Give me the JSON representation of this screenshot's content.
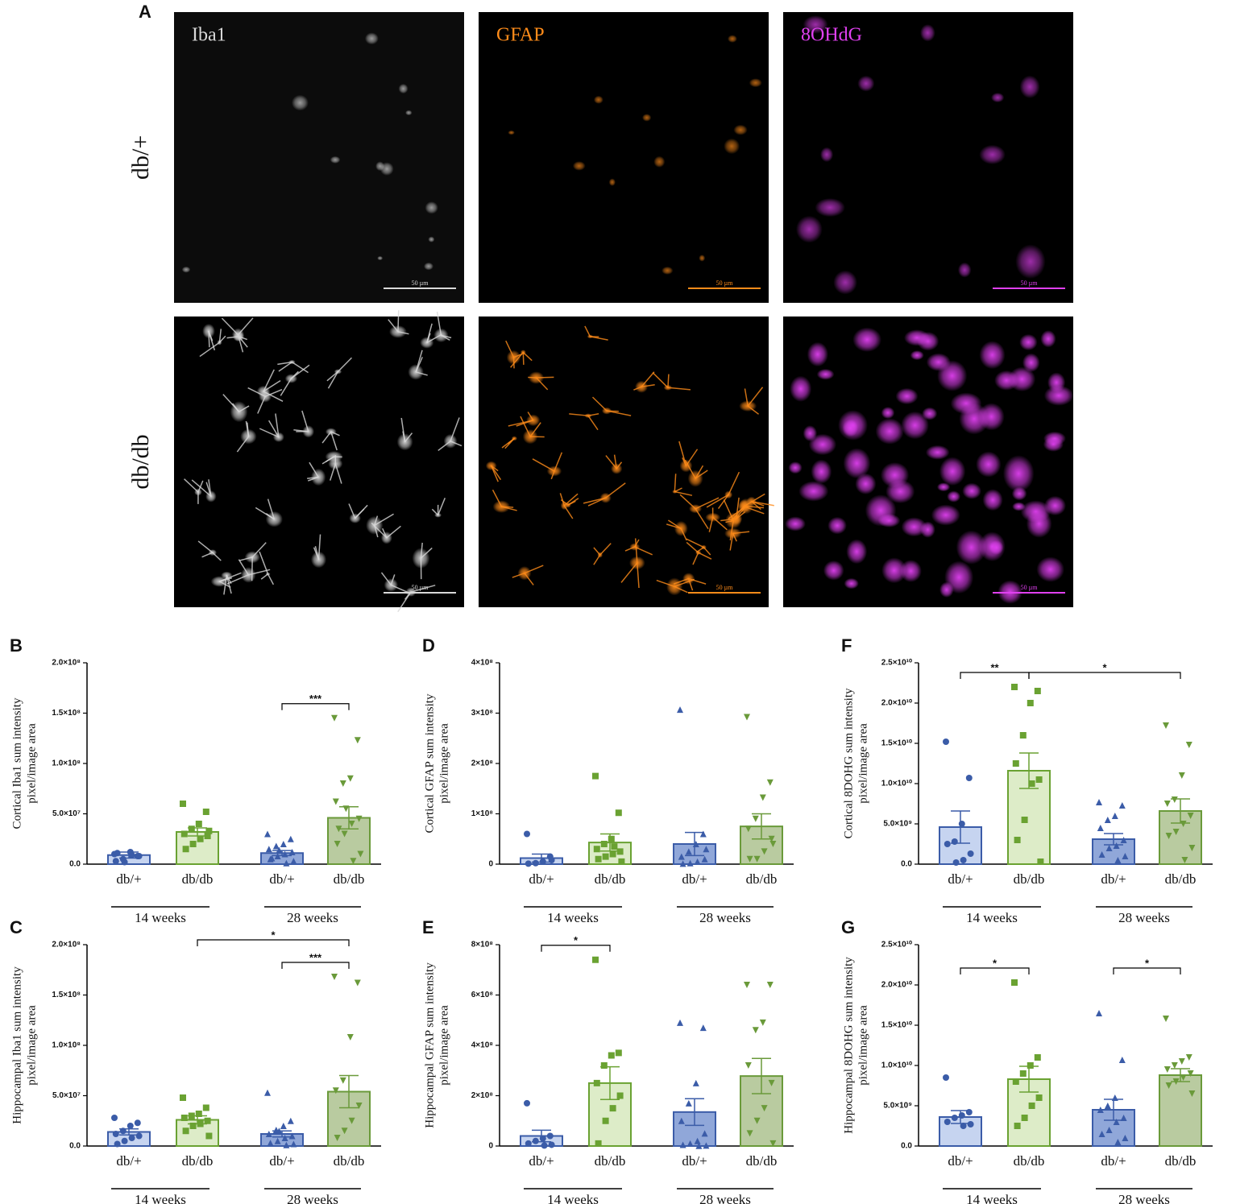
{
  "panel_a": {
    "letter": "A",
    "stains": [
      "Iba1",
      "GFAP",
      "8OHdG"
    ],
    "stain_colors": [
      "#d9d9d9",
      "#ff8c1a",
      "#e040f0"
    ],
    "genotypes": [
      "db/+",
      "db/db"
    ],
    "scale_bars": [
      "50 µm",
      "50 µm",
      "50 µm",
      "50 µm",
      "50 µm",
      "50 µm"
    ]
  },
  "bar_style": {
    "fills": [
      "#c6d4f0",
      "#ddecc8",
      "#90a7d9",
      "#b9cba0"
    ],
    "strokes": [
      "#3b5ca8",
      "#6aa232",
      "#3b5ca8",
      "#6a9a3a"
    ],
    "markers": [
      "circle",
      "square",
      "triangle-up",
      "triangle-down"
    ]
  },
  "chart_data": [
    {
      "type": "bar",
      "panel": "B",
      "ylabel": [
        "Cortical Iba1 sum intensity",
        "pixel/image area"
      ],
      "categories": [
        "db/+",
        "db/db",
        "db/+",
        "db/db"
      ],
      "groups": [
        "14 weeks",
        "28 weeks"
      ],
      "values": [
        9000000,
        32000000,
        11000000,
        46000000
      ],
      "errors": [
        3000000,
        4000000,
        2500000,
        11000000
      ],
      "points": [
        [
          10000000,
          8000000,
          12000000,
          5000000,
          3000000,
          8000000,
          9000000,
          2000000,
          11000000
        ],
        [
          60000000,
          52000000,
          40000000,
          35000000,
          30000000,
          28000000,
          25000000,
          20000000,
          15000000,
          33000000
        ],
        [
          30000000,
          25000000,
          20000000,
          18000000,
          15000000,
          12000000,
          10000000,
          8000000,
          5000000,
          3000000,
          1000000,
          14000000,
          6000000
        ],
        [
          145000000,
          123000000,
          85000000,
          80000000,
          62000000,
          45000000,
          40000000,
          30000000,
          20000000,
          10000000,
          3000000,
          55000000,
          35000000
        ]
      ],
      "significance": [
        {
          "from": 2,
          "to": 3,
          "label": "***"
        }
      ],
      "ylim": [
        0,
        200000000
      ],
      "yticks": [
        {
          "value": 0,
          "label": "0.0"
        },
        {
          "value": 50000000,
          "label": "5.0×10⁷"
        },
        {
          "value": 100000000,
          "label": "1.0×10⁸"
        },
        {
          "value": 150000000,
          "label": "1.5×10⁸"
        },
        {
          "value": 200000000,
          "label": "2.0×10⁸"
        }
      ]
    },
    {
      "type": "bar",
      "panel": "C",
      "ylabel": [
        "Hippocampal Iba1 sum intensity",
        "pixel/image area"
      ],
      "categories": [
        "db/+",
        "db/db",
        "db/+",
        "db/db"
      ],
      "groups": [
        "14 weeks",
        "28 weeks"
      ],
      "values": [
        14000000,
        26000000,
        12000000,
        54000000
      ],
      "errors": [
        3000000,
        4000000,
        3000000,
        16000000
      ],
      "points": [
        [
          28000000,
          23000000,
          20000000,
          15000000,
          12000000,
          10000000,
          8000000,
          5000000,
          2000000
        ],
        [
          48000000,
          38000000,
          32000000,
          30000000,
          28000000,
          25000000,
          22000000,
          20000000,
          15000000,
          10000000
        ],
        [
          53000000,
          25000000,
          20000000,
          16000000,
          12000000,
          10000000,
          8000000,
          5000000,
          3000000,
          2000000,
          1000000,
          15000000
        ],
        [
          168000000,
          162000000,
          108000000,
          65000000,
          55000000,
          40000000,
          25000000,
          15000000,
          8000000
        ]
      ],
      "significance": [
        {
          "from": 2,
          "to": 3,
          "label": "***"
        },
        {
          "from": 1,
          "to": 3,
          "label": "*"
        }
      ],
      "ylim": [
        0,
        200000000
      ],
      "yticks": [
        {
          "value": 0,
          "label": "0.0"
        },
        {
          "value": 50000000,
          "label": "5.0×10⁷"
        },
        {
          "value": 100000000,
          "label": "1.0×10⁸"
        },
        {
          "value": 150000000,
          "label": "1.5×10⁸"
        },
        {
          "value": 200000000,
          "label": "2.0×10⁸"
        }
      ]
    },
    {
      "type": "bar",
      "panel": "D",
      "ylabel": [
        "Cortical GFAP sum intensity",
        "pixel/image area"
      ],
      "categories": [
        "db/+",
        "db/db",
        "db/+",
        "db/db"
      ],
      "groups": [
        "14 weeks",
        "28 weeks"
      ],
      "values": [
        12000000,
        43000000,
        40000000,
        75000000
      ],
      "errors": [
        8000000,
        17000000,
        23000000,
        25000000
      ],
      "points": [
        [
          60000000,
          15000000,
          5000000,
          2000000,
          1000000,
          8000000
        ],
        [
          175000000,
          102000000,
          50000000,
          40000000,
          30000000,
          25000000,
          20000000,
          15000000,
          10000000,
          5000000,
          35000000
        ],
        [
          307000000,
          60000000,
          40000000,
          25000000,
          15000000,
          10000000,
          5000000,
          2000000,
          1000000,
          30000000
        ],
        [
          292000000,
          162000000,
          132000000,
          90000000,
          70000000,
          50000000,
          25000000,
          10000000,
          10000000,
          40000000
        ]
      ],
      "significance": [],
      "ylim": [
        0,
        400000000
      ],
      "yticks": [
        0,
        {
          "value": 100000000,
          "label": "1×10⁸"
        },
        {
          "value": 200000000,
          "label": "2×10⁸"
        },
        {
          "value": 300000000,
          "label": "3×10⁸"
        },
        {
          "value": 400000000,
          "label": "4×10⁸"
        }
      ]
    },
    {
      "type": "bar",
      "panel": "E",
      "ylabel": [
        "Hippocampal GFAP sum intensity",
        "pixel/image area"
      ],
      "categories": [
        "db/+",
        "db/db",
        "db/+",
        "db/db"
      ],
      "groups": [
        "14 weeks",
        "28 weeks"
      ],
      "values": [
        40000000,
        250000000,
        135000000,
        278000000
      ],
      "errors": [
        23000000,
        65000000,
        53000000,
        70000000
      ],
      "points": [
        [
          170000000,
          40000000,
          30000000,
          20000000,
          10000000,
          5000000,
          2000000
        ],
        [
          740000000,
          370000000,
          360000000,
          320000000,
          250000000,
          200000000,
          150000000,
          100000000,
          10000000
        ],
        [
          490000000,
          470000000,
          250000000,
          170000000,
          100000000,
          50000000,
          20000000,
          10000000,
          5000000,
          2000000,
          1000000
        ],
        [
          640000000,
          640000000,
          490000000,
          460000000,
          320000000,
          250000000,
          150000000,
          100000000,
          50000000,
          10000000
        ]
      ],
      "significance": [
        {
          "from": 0,
          "to": 1,
          "label": "*"
        }
      ],
      "ylim": [
        0,
        800000000
      ],
      "yticks": [
        0,
        {
          "value": 200000000,
          "label": "2×10⁸"
        },
        {
          "value": 400000000,
          "label": "4×10⁸"
        },
        {
          "value": 600000000,
          "label": "6×10⁸"
        },
        {
          "value": 800000000,
          "label": "8×10⁸"
        }
      ]
    },
    {
      "type": "bar",
      "panel": "F",
      "ylabel": [
        "Cortical 8DOHG sum intensity",
        "pixel/image area"
      ],
      "categories": [
        "db/+",
        "db/db",
        "db/+",
        "db/db"
      ],
      "groups": [
        "14 weeks",
        "28 weeks"
      ],
      "values": [
        4600000000,
        11600000000,
        3100000000,
        6600000000
      ],
      "errors": [
        2000000000,
        2200000000,
        700000000,
        1500000000
      ],
      "points": [
        [
          15200000000,
          10700000000,
          5000000000,
          2800000000,
          2500000000,
          1300000000,
          500000000,
          200000000
        ],
        [
          22000000000,
          21500000000,
          20000000000,
          16000000000,
          12500000000,
          10500000000,
          10000000000,
          5500000000,
          3000000000,
          300000000
        ],
        [
          7700000000,
          7300000000,
          6000000000,
          5500000000,
          4500000000,
          3000000000,
          2300000000,
          2000000000,
          1200000000,
          1000000000,
          500000000
        ],
        [
          17200000000,
          14800000000,
          11000000000,
          8000000000,
          7500000000,
          6000000000,
          5000000000,
          4000000000,
          3500000000,
          2000000000,
          500000000
        ]
      ],
      "significance": [
        {
          "from": 0,
          "to": 1,
          "label": "**"
        },
        {
          "from": 1,
          "to": 3,
          "label": "*"
        }
      ],
      "ylim": [
        0,
        25000000000
      ],
      "yticks": [
        {
          "value": 0,
          "label": "0.0"
        },
        {
          "value": 5000000000,
          "label": "5.0×10⁹"
        },
        {
          "value": 10000000000,
          "label": "1.0×10¹⁰"
        },
        {
          "value": 15000000000,
          "label": "1.5×10¹⁰"
        },
        {
          "value": 20000000000,
          "label": "2.0×10¹⁰"
        },
        {
          "value": 25000000000,
          "label": "2.5×10¹⁰"
        }
      ]
    },
    {
      "type": "bar",
      "panel": "G",
      "ylabel": [
        "Hippocampal 8DOHG sum intensity",
        "pixel/image area"
      ],
      "categories": [
        "db/+",
        "db/db",
        "db/+",
        "db/db"
      ],
      "groups": [
        "14 weeks",
        "28 weeks"
      ],
      "values": [
        3600000000,
        8300000000,
        4500000000,
        8800000000
      ],
      "errors": [
        800000000,
        1600000000,
        1300000000,
        800000000
      ],
      "points": [
        [
          8500000000,
          4200000000,
          3800000000,
          3500000000,
          3000000000,
          2700000000,
          2500000000
        ],
        [
          20300000000,
          11000000000,
          10000000000,
          9000000000,
          8000000000,
          6000000000,
          5000000000,
          3500000000,
          2500000000
        ],
        [
          16500000000,
          10700000000,
          6000000000,
          5000000000,
          4500000000,
          3500000000,
          3000000000,
          2000000000,
          1500000000,
          1000000000,
          500000000
        ],
        [
          15800000000,
          11000000000,
          10500000000,
          10000000000,
          9500000000,
          9000000000,
          8500000000,
          8000000000,
          7500000000,
          6500000000
        ]
      ],
      "significance": [
        {
          "from": 0,
          "to": 1,
          "label": "*"
        },
        {
          "from": 2,
          "to": 3,
          "label": "*"
        }
      ],
      "ylim": [
        0,
        25000000000
      ],
      "yticks": [
        {
          "value": 0,
          "label": "0.0"
        },
        {
          "value": 5000000000,
          "label": "5.0×10⁹"
        },
        {
          "value": 10000000000,
          "label": "1.0×10¹⁰"
        },
        {
          "value": 15000000000,
          "label": "1.5×10¹⁰"
        },
        {
          "value": 20000000000,
          "label": "2.0×10¹⁰"
        },
        {
          "value": 25000000000,
          "label": "2.5×10¹⁰"
        }
      ]
    }
  ]
}
